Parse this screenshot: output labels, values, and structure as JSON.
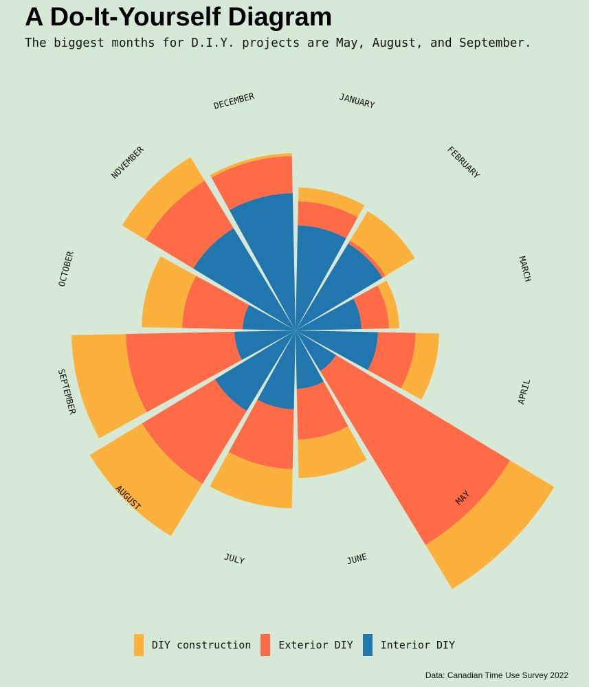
{
  "title": "A Do-It-Yourself Diagram",
  "subtitle": "The biggest months for D.I.Y. projects are May, August, and September.",
  "caption": "Data: Canadian Time Use Survey 2022",
  "colors": {
    "background": "#d6e9d6",
    "interior": "#2176ae",
    "exterior": "#ff6b47",
    "construction": "#fbb13c"
  },
  "legend": [
    {
      "label": "DIY construction",
      "color": "#fbb13c"
    },
    {
      "label": "Exterior DIY",
      "color": "#ff6b47"
    },
    {
      "label": "Interior DIY",
      "color": "#2176ae"
    }
  ],
  "chart_data": {
    "type": "bar",
    "polar": true,
    "stacked": true,
    "categories": [
      "JANUARY",
      "FEBRUARY",
      "MARCH",
      "APRIL",
      "MAY",
      "JUNE",
      "JULY",
      "AUGUST",
      "SEPTEMBER",
      "OCTOBER",
      "NOVEMBER",
      "DECEMBER"
    ],
    "series": [
      {
        "name": "Interior DIY",
        "color": "#2176ae",
        "values": [
          153,
          148,
          96,
          120,
          69,
          85,
          115,
          137,
          89,
          77,
          174,
          200
        ]
      },
      {
        "name": "Exterior DIY",
        "color": "#ff6b47",
        "values": [
          35,
          5,
          40,
          55,
          296,
          74,
          87,
          124,
          158,
          88,
          81,
          54
        ]
      },
      {
        "name": "DIY construction",
        "color": "#fbb13c",
        "values": [
          20,
          50,
          15,
          34,
          75,
          56,
          57,
          89,
          79,
          59,
          40,
          4
        ]
      }
    ]
  }
}
